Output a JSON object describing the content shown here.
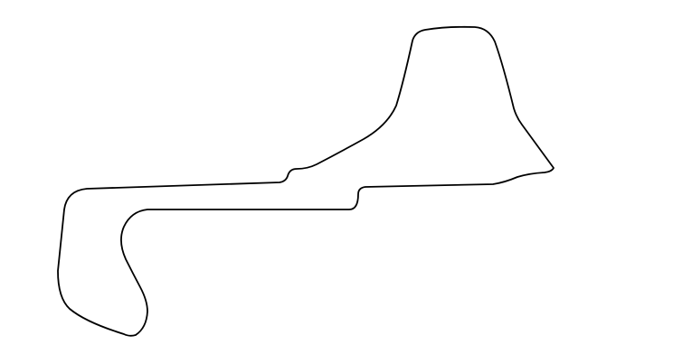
{
  "figure": {
    "kind": "race-circuit-outline",
    "background_color": "#ffffff",
    "track_color": "#000000"
  }
}
